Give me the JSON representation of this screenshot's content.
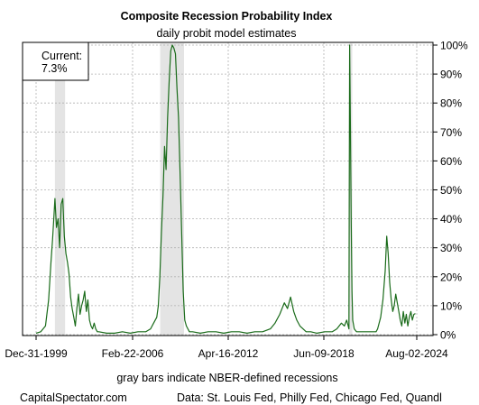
{
  "chart_data": {
    "type": "line",
    "title": "Composite Recession Probability Index",
    "subtitle": "daily probit model estimates",
    "xlabel": "",
    "ylabel": "",
    "caption": "gray bars indicate NBER-defined recessions",
    "footer_left": "CapitalSpectator.com",
    "footer_right": "Data: St. Louis Fed, Philly Fed, Chicago Fed, Quandl",
    "current_box": {
      "label": "Current:",
      "value": "7.3%"
    },
    "x_ticks": [
      "Dec-31-1999",
      "Feb-22-2006",
      "Apr-16-2012",
      "Jun-09-2018",
      "Aug-02-2024"
    ],
    "y_ticks": [
      "0%",
      "10%",
      "20%",
      "30%",
      "40%",
      "50%",
      "60%",
      "70%",
      "80%",
      "90%",
      "100%"
    ],
    "ylim": [
      0,
      100
    ],
    "xlim": [
      1999.7,
      2024.8
    ],
    "grid": true,
    "recessions": [
      {
        "start": 2001.2,
        "end": 2001.85
      },
      {
        "start": 2007.92,
        "end": 2009.45
      },
      {
        "start": 2020.12,
        "end": 2020.32
      }
    ],
    "series": [
      {
        "color": "#1a6b1a",
        "x": [
          2000.0,
          2000.3,
          2000.6,
          2000.8,
          2000.95,
          2001.05,
          2001.15,
          2001.2,
          2001.3,
          2001.4,
          2001.5,
          2001.6,
          2001.7,
          2001.8,
          2001.9,
          2002.0,
          2002.1,
          2002.2,
          2002.3,
          2002.4,
          2002.5,
          2002.6,
          2002.7,
          2002.8,
          2002.9,
          2003.0,
          2003.1,
          2003.2,
          2003.3,
          2003.4,
          2003.5,
          2003.6,
          2003.7,
          2003.8,
          2003.9,
          2004.0,
          2004.5,
          2005.0,
          2005.5,
          2006.0,
          2006.5,
          2007.0,
          2007.3,
          2007.5,
          2007.7,
          2007.8,
          2007.9,
          2008.0,
          2008.1,
          2008.2,
          2008.3,
          2008.4,
          2008.5,
          2008.6,
          2008.7,
          2008.8,
          2008.9,
          2009.0,
          2009.1,
          2009.2,
          2009.3,
          2009.4,
          2009.5,
          2009.6,
          2009.7,
          2009.8,
          2009.9,
          2010.0,
          2010.5,
          2011.0,
          2011.5,
          2012.0,
          2012.5,
          2013.0,
          2013.5,
          2014.0,
          2014.5,
          2015.0,
          2015.3,
          2015.6,
          2015.9,
          2016.1,
          2016.3,
          2016.5,
          2016.7,
          2016.9,
          2017.1,
          2017.3,
          2017.6,
          2018.0,
          2018.5,
          2019.0,
          2019.3,
          2019.6,
          2019.8,
          2019.95,
          2020.05,
          2020.1,
          2020.15,
          2020.2,
          2020.25,
          2020.3,
          2020.35,
          2020.45,
          2020.6,
          2020.8,
          2021.0,
          2021.3,
          2021.6,
          2021.9,
          2022.0,
          2022.2,
          2022.35,
          2022.5,
          2022.6,
          2022.7,
          2022.8,
          2022.9,
          2023.0,
          2023.1,
          2023.2,
          2023.3,
          2023.4,
          2023.5,
          2023.6,
          2023.7,
          2023.8,
          2023.9,
          2024.0,
          2024.1,
          2024.2,
          2024.3,
          2024.4,
          2024.5
        ],
        "y": [
          0.5,
          1,
          3,
          12,
          25,
          33,
          42,
          47,
          37,
          40,
          30,
          45,
          47,
          34,
          28,
          25,
          21,
          13,
          9,
          6,
          3,
          9,
          14,
          7,
          10,
          12,
          15,
          8,
          12,
          5,
          3,
          2,
          4,
          2,
          1,
          1,
          0.5,
          0.5,
          1,
          0.5,
          1,
          1,
          2,
          4,
          6,
          10,
          20,
          35,
          48,
          65,
          57,
          75,
          88,
          98,
          100,
          99,
          97,
          85,
          75,
          55,
          35,
          15,
          5,
          3,
          2,
          1,
          1,
          1,
          0.5,
          1,
          1,
          0.5,
          1,
          1,
          0.5,
          1,
          1,
          2,
          4,
          7,
          11,
          9,
          13,
          8,
          5,
          3,
          2,
          1,
          1,
          0.5,
          1,
          1,
          2,
          4,
          3,
          5,
          3,
          2,
          100,
          70,
          40,
          15,
          5,
          2,
          1,
          1,
          1,
          1,
          1,
          1,
          2,
          6,
          12,
          22,
          34,
          28,
          18,
          12,
          8,
          10,
          14,
          11,
          8,
          5,
          3,
          8,
          4,
          7,
          3,
          6,
          8,
          5,
          7,
          7.3
        ]
      }
    ]
  }
}
